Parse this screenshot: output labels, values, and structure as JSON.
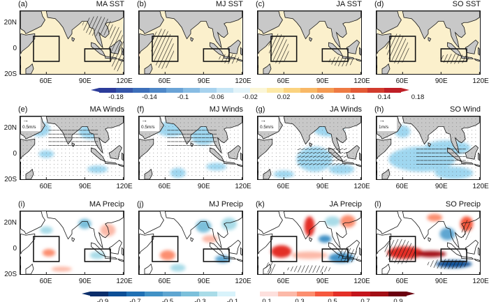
{
  "panels": [
    {
      "label": "(a)",
      "title": "MA SST",
      "type": "sst",
      "key": null
    },
    {
      "label": "(b)",
      "title": "MJ SST",
      "type": "sst",
      "key": null
    },
    {
      "label": "(c)",
      "title": "JA SST",
      "type": "sst",
      "key": null
    },
    {
      "label": "(d)",
      "title": "SO SST",
      "type": "sst",
      "key": null
    },
    {
      "label": "(e)",
      "title": "MA Winds",
      "type": "wind",
      "key": "0.5m/s"
    },
    {
      "label": "(f)",
      "title": "MJ Winds",
      "type": "wind",
      "key": "0.5m/s"
    },
    {
      "label": "(g)",
      "title": "JA Winds",
      "type": "wind",
      "key": "0.5m/s"
    },
    {
      "label": "(h)",
      "title": "SO Wind",
      "type": "wind",
      "key": "1m/s"
    },
    {
      "label": "(i)",
      "title": "MA Precip",
      "type": "precip",
      "key": null
    },
    {
      "label": "(j)",
      "title": "MJ Precip",
      "type": "precip",
      "key": null
    },
    {
      "label": "(k)",
      "title": "JA Precip",
      "type": "precip",
      "key": null
    },
    {
      "label": "(l)",
      "title": "SO Precip",
      "type": "precip",
      "key": null
    }
  ],
  "axes": {
    "lat_labels": [
      "20N",
      "0",
      "20S"
    ],
    "lat_values": [
      20,
      0,
      -20
    ],
    "lon_labels": [
      "60E",
      "90E",
      "120E"
    ],
    "lon_values": [
      60,
      90,
      120
    ],
    "lon_range": [
      40,
      120
    ],
    "lat_range": [
      -20,
      30
    ]
  },
  "boxes": [
    {
      "lon": [
        50,
        70
      ],
      "lat": [
        -10,
        10
      ]
    },
    {
      "lon": [
        90,
        110
      ],
      "lat": [
        -10,
        0
      ]
    }
  ],
  "sst_colorbar": {
    "labels": [
      "-0.18",
      "-0.14",
      "-0.1",
      "-0.06",
      "-0.02",
      "0.02",
      "0.06",
      "0.1",
      "0.14",
      "0.18"
    ],
    "colors": [
      "#2c3c9a",
      "#3556aa",
      "#3d6fba",
      "#4f88c8",
      "#6aa3d6",
      "#88bce3",
      "#a7d2ee",
      "#c6e5f5",
      "#e2f3f9",
      "#fbf6d8",
      "#fde9a6",
      "#fbd37f",
      "#f8b866",
      "#f49a52",
      "#ee7a43",
      "#e35a36",
      "#d23b2d",
      "#bf1f26"
    ]
  },
  "precip_colorbar": {
    "neg_labels": [
      "-0.9",
      "-0.7",
      "-0.5",
      "-0.3",
      "-0.1"
    ],
    "pos_labels": [
      "0.1",
      "0.3",
      "0.5",
      "0.7",
      "0.9"
    ],
    "neg_colors": [
      "#0b2e6b",
      "#0d4f96",
      "#2070b4",
      "#4292c6",
      "#5fa6d1",
      "#7cc0db",
      "#a9dce8",
      "#d8f3fb"
    ],
    "pos_colors": [
      "#fde0dd",
      "#fcb9a8",
      "#fc8e6f",
      "#f6583e",
      "#e32f27",
      "#c4151c",
      "#a30f15",
      "#6b0010"
    ]
  },
  "colors": {
    "land": "#c8c8c8",
    "frame": "#111111",
    "wind_sig": "#9fd7f0"
  }
}
